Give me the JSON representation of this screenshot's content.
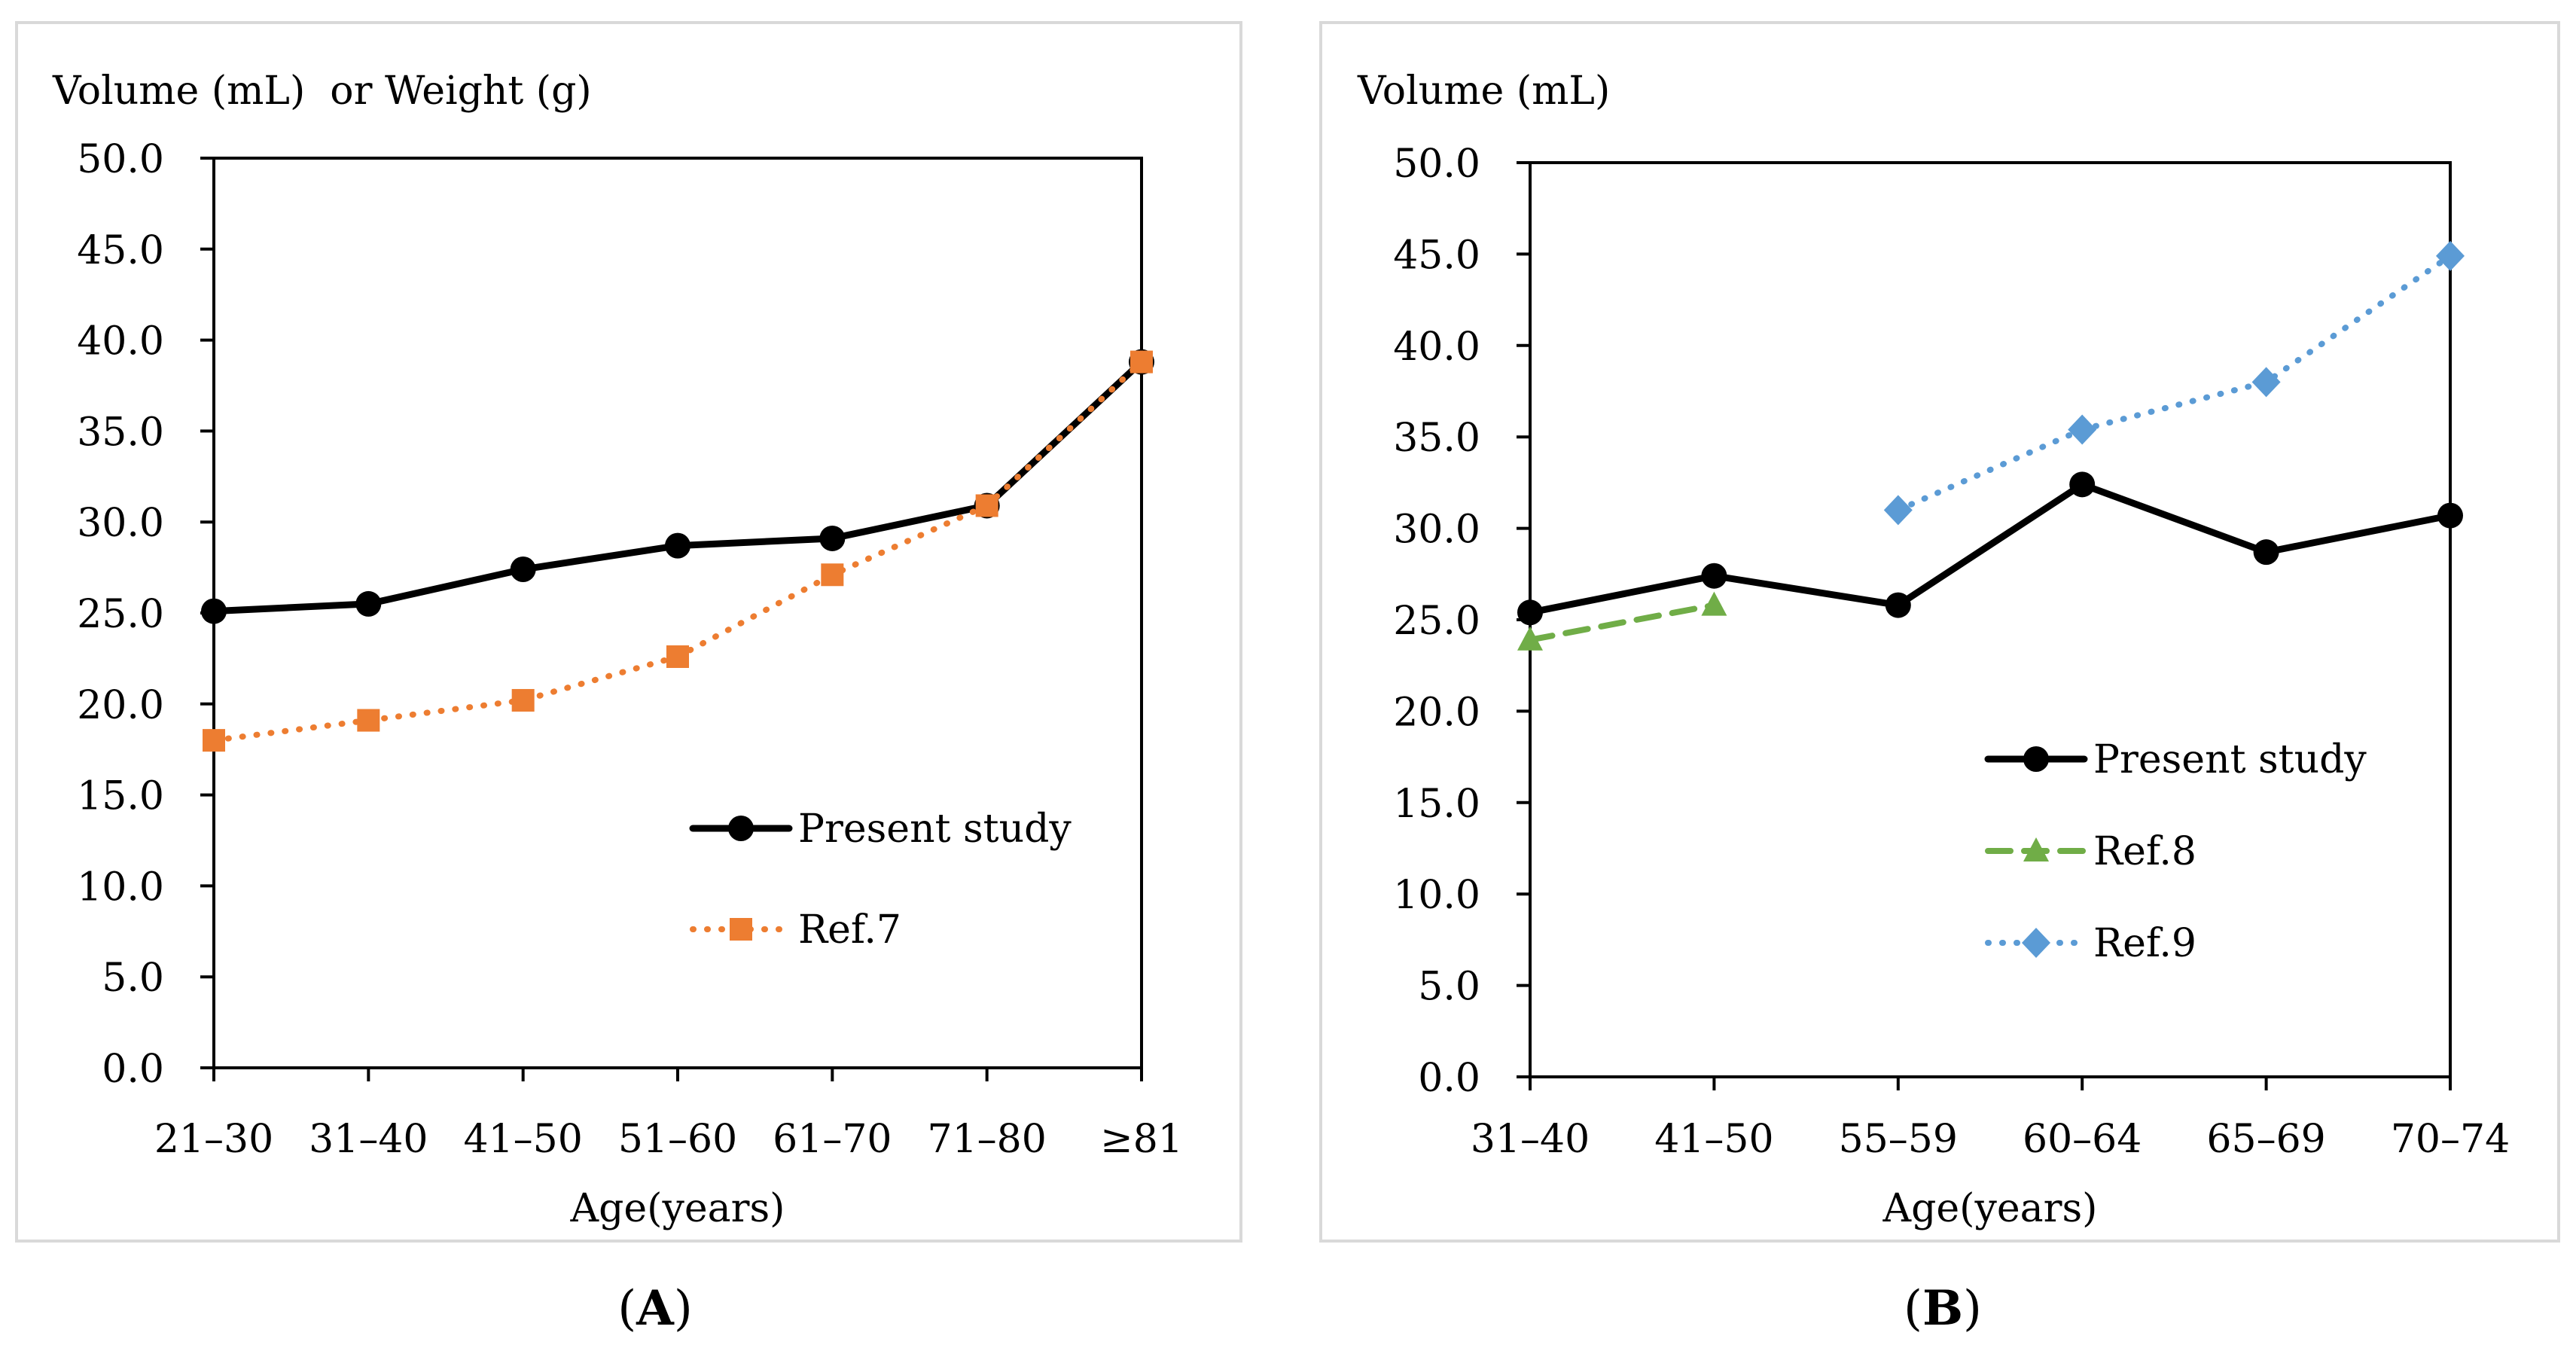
{
  "figure": {
    "labels": [
      {
        "open": "(",
        "letter": "A",
        "close": ")"
      },
      {
        "open": "(",
        "letter": "B",
        "close": ")"
      }
    ]
  },
  "chart_data": [
    {
      "type": "line",
      "panel": "A",
      "ylabel": "Volume (mL)  or Weight (g)",
      "xlabel": "Age(years)",
      "categories": [
        "21–30",
        "31–40",
        "41–50",
        "51–60",
        "61–70",
        "71–80",
        "≥81"
      ],
      "ylim": [
        0,
        50
      ],
      "yticks": [
        "0.0",
        "5.0",
        "10.0",
        "15.0",
        "20.0",
        "25.0",
        "30.0",
        "35.0",
        "40.0",
        "45.0",
        "50.0"
      ],
      "legend_position": "lower-right",
      "series": [
        {
          "name": "Present study",
          "style": "solid",
          "marker": "circle",
          "color": "#000000",
          "values": [
            25.1,
            25.5,
            27.4,
            28.7,
            29.1,
            30.9,
            38.8
          ]
        },
        {
          "name": "Ref.7",
          "style": "dotted",
          "marker": "square",
          "color": "#ed7d31",
          "values": [
            18.0,
            19.1,
            20.2,
            22.6,
            27.1,
            30.9,
            38.8
          ]
        }
      ]
    },
    {
      "type": "line",
      "panel": "B",
      "ylabel": "Volume (mL)",
      "xlabel": "Age(years)",
      "categories": [
        "31–40",
        "41–50",
        "55–59",
        "60–64",
        "65–69",
        "70–74"
      ],
      "ylim": [
        0,
        50
      ],
      "yticks": [
        "0.0",
        "5.0",
        "10.0",
        "15.0",
        "20.0",
        "25.0",
        "30.0",
        "35.0",
        "40.0",
        "45.0",
        "50.0"
      ],
      "legend_position": "center-right",
      "series": [
        {
          "name": "Present study",
          "style": "solid",
          "marker": "circle",
          "color": "#000000",
          "values": [
            25.4,
            27.4,
            25.8,
            32.4,
            28.7,
            30.7
          ]
        },
        {
          "name": "Ref.8",
          "style": "dashed",
          "marker": "triangle",
          "color": "#70ad47",
          "values": [
            23.9,
            25.8,
            null,
            null,
            null,
            null
          ]
        },
        {
          "name": "Ref.9",
          "style": "dotted",
          "marker": "diamond",
          "color": "#5b9bd5",
          "values": [
            null,
            null,
            31.0,
            35.4,
            38.0,
            44.9
          ]
        }
      ]
    }
  ]
}
